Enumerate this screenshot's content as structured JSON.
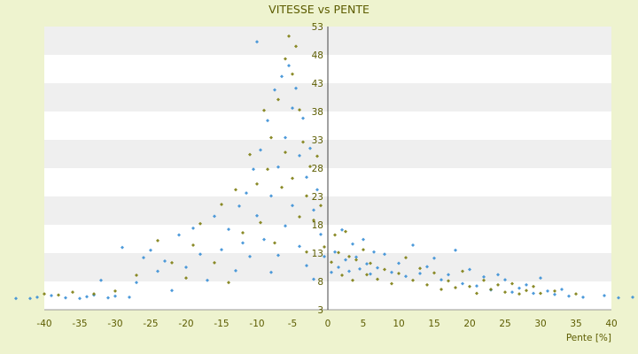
{
  "chart_data": {
    "type": "scatter",
    "title": "VITESSE vs PENTE",
    "xlabel": "Pente [%]",
    "ylabel": "",
    "xlim": [
      -40,
      40
    ],
    "ylim": [
      3,
      53
    ],
    "x_ticks": [
      -40,
      -35,
      -30,
      -25,
      -20,
      -15,
      -10,
      -5,
      0,
      5,
      10,
      15,
      20,
      25,
      30,
      35,
      40
    ],
    "y_ticks": [
      3,
      8,
      13,
      18,
      23,
      28,
      33,
      38,
      43,
      48,
      53
    ],
    "grid": "horizontal bands",
    "legend": "none",
    "series": [
      {
        "color": "#3a8fd6",
        "points": [
          [
            -44,
            5
          ],
          [
            -42,
            5
          ],
          [
            -41,
            5.2
          ],
          [
            -39,
            5.5
          ],
          [
            -37,
            5.1
          ],
          [
            -35,
            5
          ],
          [
            -34,
            5.3
          ],
          [
            -33,
            5.6
          ],
          [
            -32,
            8.2
          ],
          [
            -31,
            5.1
          ],
          [
            -30,
            5.4
          ],
          [
            -29,
            14
          ],
          [
            -28,
            5.2
          ],
          [
            -27,
            7.8
          ],
          [
            -26,
            12.2
          ],
          [
            -25,
            13.5
          ],
          [
            -24,
            9.8
          ],
          [
            -23,
            11.6
          ],
          [
            -22,
            6.4
          ],
          [
            -21,
            16.2
          ],
          [
            -20,
            10.5
          ],
          [
            -19,
            17.4
          ],
          [
            -18,
            12.8
          ],
          [
            -17,
            8.2
          ],
          [
            -16,
            19.5
          ],
          [
            -15,
            13.6
          ],
          [
            -14,
            17.2
          ],
          [
            -13,
            9.9
          ],
          [
            -12.5,
            21.3
          ],
          [
            -12,
            14.8
          ],
          [
            -11.5,
            23.6
          ],
          [
            -11,
            12.4
          ],
          [
            -10.5,
            27.8
          ],
          [
            -10,
            19.6
          ],
          [
            -10,
            50.3
          ],
          [
            -9.5,
            31.2
          ],
          [
            -9,
            15.4
          ],
          [
            -8.5,
            36.4
          ],
          [
            -8,
            23.1
          ],
          [
            -8,
            9.6
          ],
          [
            -7.5,
            41.8
          ],
          [
            -7,
            28.2
          ],
          [
            -7,
            12.6
          ],
          [
            -6.5,
            44.2
          ],
          [
            -6,
            33.4
          ],
          [
            -6,
            17.8
          ],
          [
            -5.5,
            46.1
          ],
          [
            -5,
            38.6
          ],
          [
            -5,
            21.4
          ],
          [
            -4.5,
            42.1
          ],
          [
            -4,
            30.2
          ],
          [
            -4,
            14.2
          ],
          [
            -3.5,
            36.8
          ],
          [
            -3,
            26.4
          ],
          [
            -3,
            10.8
          ],
          [
            -2.5,
            31.5
          ],
          [
            -2,
            20.6
          ],
          [
            -2,
            8.4
          ],
          [
            -1.5,
            24.2
          ],
          [
            -1,
            16.3
          ],
          [
            -0.5,
            12.4
          ],
          [
            0.5,
            9.6
          ],
          [
            1,
            13.2
          ],
          [
            1.5,
            10.5
          ],
          [
            2,
            17.1
          ],
          [
            2.5,
            11.8
          ],
          [
            3,
            9.8
          ],
          [
            3.5,
            14.6
          ],
          [
            4,
            12.3
          ],
          [
            4.5,
            10.2
          ],
          [
            5,
            15.4
          ],
          [
            5.5,
            11.1
          ],
          [
            6,
            9.3
          ],
          [
            6.5,
            13.2
          ],
          [
            7,
            10.4
          ],
          [
            8,
            12.8
          ],
          [
            9,
            9.6
          ],
          [
            10,
            11.2
          ],
          [
            11,
            8.9
          ],
          [
            12,
            14.4
          ],
          [
            13,
            9.4
          ],
          [
            14,
            10.6
          ],
          [
            15,
            12.1
          ],
          [
            16,
            8.3
          ],
          [
            17,
            9.2
          ],
          [
            18,
            13.5
          ],
          [
            19,
            7.6
          ],
          [
            20,
            10.1
          ],
          [
            21,
            7.2
          ],
          [
            22,
            8.8
          ],
          [
            23,
            6.5
          ],
          [
            24,
            9.2
          ],
          [
            25,
            8.3
          ],
          [
            26,
            6.1
          ],
          [
            27,
            6.8
          ],
          [
            28,
            7.4
          ],
          [
            29,
            5.9
          ],
          [
            30,
            8.6
          ],
          [
            31,
            6.3
          ],
          [
            32,
            5.7
          ],
          [
            33,
            6.6
          ],
          [
            34,
            5.4
          ],
          [
            36,
            5.2
          ],
          [
            39,
            5.5
          ],
          [
            41,
            5.1
          ],
          [
            43,
            5.2
          ]
        ]
      },
      {
        "color": "#7d7d10",
        "points": [
          [
            -40,
            5.8
          ],
          [
            -38,
            5.6
          ],
          [
            -36,
            6.1
          ],
          [
            -33,
            5.8
          ],
          [
            -30,
            6.3
          ],
          [
            -27,
            9.1
          ],
          [
            -24,
            15.2
          ],
          [
            -22,
            11.3
          ],
          [
            -20,
            8.6
          ],
          [
            -19,
            14.4
          ],
          [
            -18,
            18.2
          ],
          [
            -16,
            11.3
          ],
          [
            -15,
            21.6
          ],
          [
            -14,
            7.8
          ],
          [
            -13,
            24.2
          ],
          [
            -12,
            16.6
          ],
          [
            -11,
            30.4
          ],
          [
            -10,
            25.2
          ],
          [
            -9.5,
            18.4
          ],
          [
            -9,
            38.2
          ],
          [
            -8.5,
            27.8
          ],
          [
            -8,
            33.4
          ],
          [
            -7.5,
            14.8
          ],
          [
            -7,
            40.1
          ],
          [
            -6.5,
            24.6
          ],
          [
            -6,
            47.3
          ],
          [
            -6,
            30.8
          ],
          [
            -5.5,
            51.3
          ],
          [
            -5,
            44.6
          ],
          [
            -5,
            26.2
          ],
          [
            -4.5,
            49.5
          ],
          [
            -4,
            38.3
          ],
          [
            -4,
            19.4
          ],
          [
            -3.5,
            32.6
          ],
          [
            -3,
            23.1
          ],
          [
            -3,
            13.2
          ],
          [
            -2.5,
            28.3
          ],
          [
            -2,
            18.8
          ],
          [
            -1.5,
            30.1
          ],
          [
            -1,
            21.4
          ],
          [
            -0.5,
            14.1
          ],
          [
            0.5,
            11.4
          ],
          [
            1,
            16.2
          ],
          [
            1.5,
            13.1
          ],
          [
            2,
            9.1
          ],
          [
            2.5,
            16.8
          ],
          [
            3,
            12.4
          ],
          [
            3.5,
            8.2
          ],
          [
            4,
            11.8
          ],
          [
            5,
            13.6
          ],
          [
            5.5,
            9.2
          ],
          [
            6,
            11.2
          ],
          [
            7,
            8.4
          ],
          [
            8,
            10.1
          ],
          [
            9,
            7.6
          ],
          [
            10,
            9.4
          ],
          [
            11,
            12.2
          ],
          [
            12,
            8.2
          ],
          [
            13,
            10.3
          ],
          [
            14,
            7.4
          ],
          [
            15,
            9.5
          ],
          [
            16,
            6.6
          ],
          [
            17,
            8.1
          ],
          [
            18,
            6.9
          ],
          [
            19,
            9.8
          ],
          [
            20,
            7.1
          ],
          [
            21,
            5.9
          ],
          [
            22,
            8.2
          ],
          [
            23,
            6.6
          ],
          [
            24,
            7.4
          ],
          [
            25,
            6.1
          ],
          [
            26,
            7.6
          ],
          [
            27,
            5.8
          ],
          [
            28,
            6.4
          ],
          [
            29,
            7.1
          ],
          [
            30,
            5.9
          ],
          [
            32,
            6.3
          ],
          [
            35,
            5.8
          ]
        ]
      }
    ]
  }
}
